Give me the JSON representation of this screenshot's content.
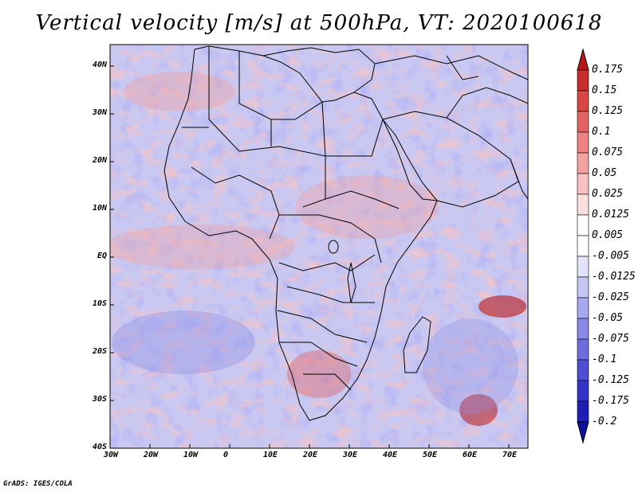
{
  "title": "Vertical velocity [m/s] at 500hPa, VT: 2020100618",
  "credit": "GrADS: IGES/COLA",
  "map": {
    "region": "Africa and surrounding oceans",
    "variable": "vertical velocity at 500hPa",
    "units": "m/s",
    "lat_labels": [
      "40N",
      "30N",
      "20N",
      "10N",
      "EQ",
      "10S",
      "20S",
      "30S",
      "40S"
    ],
    "lon_labels": [
      "30W",
      "20W",
      "10W",
      "0",
      "10E",
      "20E",
      "30E",
      "40E",
      "50E",
      "60E",
      "70E"
    ]
  },
  "colorbar": {
    "labels": [
      "0.175",
      "0.15",
      "0.125",
      "0.1",
      "0.075",
      "0.05",
      "0.025",
      "0.0125",
      "0.005",
      "-0.005",
      "-0.0125",
      "-0.025",
      "-0.05",
      "-0.075",
      "-0.1",
      "-0.125",
      "-0.175",
      "-0.2"
    ],
    "colors": [
      "#b81818",
      "#c92c2c",
      "#d84646",
      "#e36262",
      "#ec8282",
      "#f3a2a2",
      "#f8c2c2",
      "#fce0e0",
      "#ffffff",
      "#ffffff",
      "#e2e2fa",
      "#c6c6f4",
      "#a8a8ee",
      "#8a8ae6",
      "#6c6cdd",
      "#4e4ed2",
      "#3434c6",
      "#1e1eb6",
      "#1010a0"
    ]
  }
}
